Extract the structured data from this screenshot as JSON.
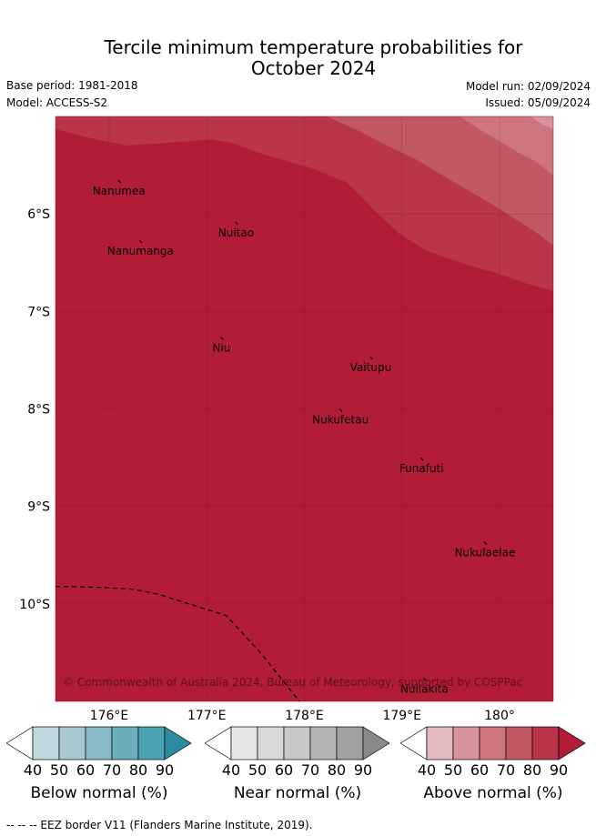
{
  "header": {
    "title_line1": "Tercile minimum temperature probabilities for",
    "title_line2": "October 2024",
    "base_period": "Base period: 1981-2018",
    "model": "Model: ACCESS-S2",
    "model_run": "Model run: 02/09/2024",
    "issued": "Issued: 05/09/2024"
  },
  "map": {
    "lon_range": [
      175.45,
      180.55
    ],
    "lat_range": [
      -11.0,
      -5.0
    ],
    "lon_ticks": [
      {
        "value": 176,
        "label": "176°E"
      },
      {
        "value": 177,
        "label": "177°E"
      },
      {
        "value": 178,
        "label": "178°E"
      },
      {
        "value": 179,
        "label": "179°E"
      },
      {
        "value": 180,
        "label": "180°"
      }
    ],
    "lat_ticks": [
      {
        "value": -6,
        "label": "6°S"
      },
      {
        "value": -7,
        "label": "7°S"
      },
      {
        "value": -8,
        "label": "8°S"
      },
      {
        "value": -9,
        "label": "9°S"
      },
      {
        "value": -10,
        "label": "10°S"
      }
    ],
    "places": [
      {
        "name": "Nanumea",
        "lon": 176.1,
        "lat": -5.67
      },
      {
        "name": "Nuitao",
        "lon": 177.3,
        "lat": -6.1
      },
      {
        "name": "Nanumanga",
        "lon": 176.32,
        "lat": -6.29
      },
      {
        "name": "Niu",
        "lon": 177.15,
        "lat": -7.28
      },
      {
        "name": "Vaitupu",
        "lon": 178.68,
        "lat": -7.48
      },
      {
        "name": "Nukufetau",
        "lon": 178.37,
        "lat": -8.02
      },
      {
        "name": "Funafuti",
        "lon": 179.2,
        "lat": -8.52
      },
      {
        "name": "Nukulaelae",
        "lon": 179.85,
        "lat": -9.38
      },
      {
        "name": "Nuilakita",
        "lon": 179.23,
        "lat": -10.78
      }
    ],
    "copyright": "© Commonwealth of Australia 2024, Bureau of Meteorology, supported by COSPPac",
    "eez_border": [
      [
        175.45,
        -9.82
      ],
      [
        175.9,
        -9.83
      ],
      [
        176.25,
        -9.85
      ],
      [
        176.5,
        -9.9
      ],
      [
        177.2,
        -10.12
      ],
      [
        177.55,
        -10.5
      ],
      [
        177.95,
        -11.0
      ]
    ]
  },
  "colorbars": [
    {
      "label": "Below normal (%)",
      "ticks": [
        "40",
        "50",
        "60",
        "70",
        "80",
        "90"
      ],
      "colors": [
        "#ffffff",
        "#bfd6dc",
        "#a7c9cf",
        "#89b9c4",
        "#6aaebc",
        "#4aa1b2",
        "#2b8ca1"
      ]
    },
    {
      "label": "Near normal (%)",
      "ticks": [
        "40",
        "50",
        "60",
        "70",
        "80",
        "90"
      ],
      "colors": [
        "#ffffff",
        "#e6e6e6",
        "#d9d9d9",
        "#c8c8c8",
        "#b5b5b5",
        "#a1a1a1",
        "#8a8a8a"
      ]
    },
    {
      "label": "Above normal (%)",
      "ticks": [
        "40",
        "50",
        "60",
        "70",
        "80",
        "90"
      ],
      "colors": [
        "#ffffff",
        "#e3b8bf",
        "#d7939c",
        "#cd747e",
        "#c25864",
        "#b93549",
        "#b21c38"
      ]
    }
  ],
  "footer": {
    "eez_legend": "--  --  -- EEZ border V11 (Flanders Marine Institute, 2019)."
  }
}
